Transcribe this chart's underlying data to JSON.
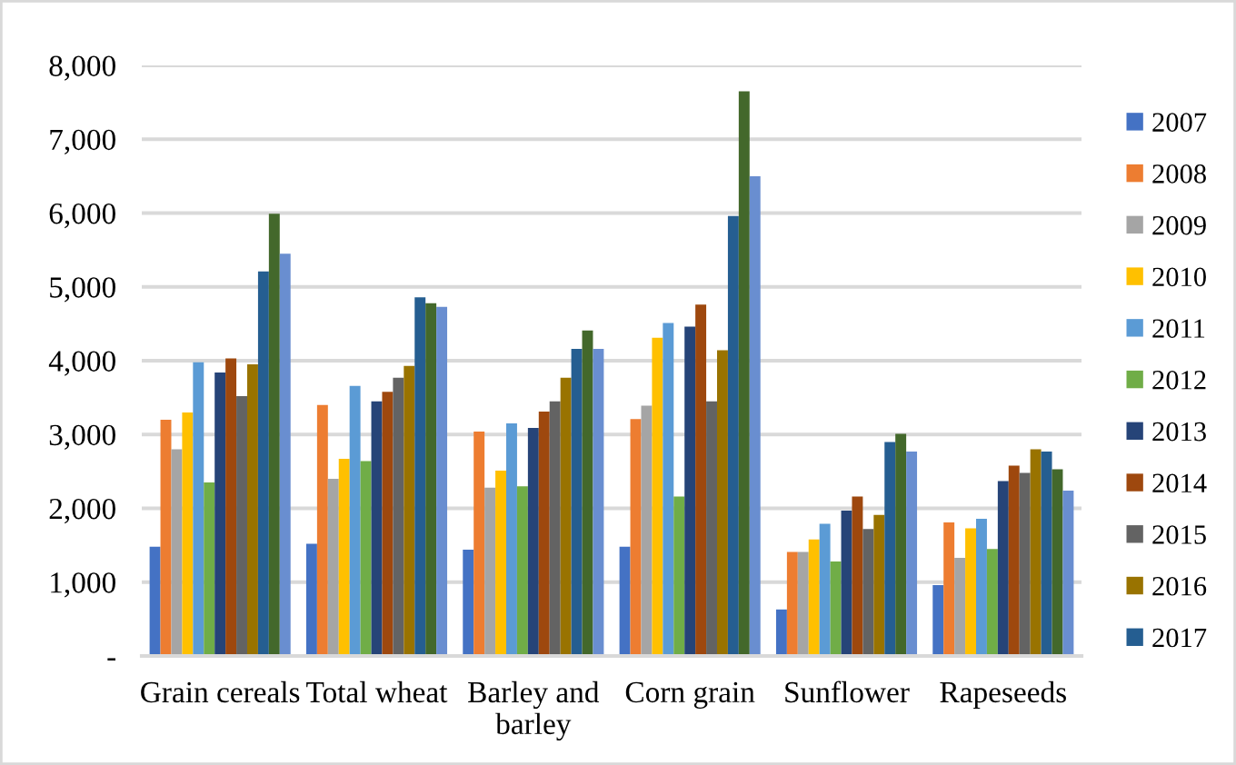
{
  "chart_data": {
    "type": "bar",
    "categories": [
      "Grain cereals",
      "Total wheat",
      "Barley and\nbarley",
      "Corn grain",
      "Sunflower",
      "Rapeseeds"
    ],
    "ylim": [
      0,
      8000
    ],
    "yticks": [
      {
        "value": 0,
        "label": "-"
      },
      {
        "value": 1000,
        "label": "1,000"
      },
      {
        "value": 2000,
        "label": "2,000"
      },
      {
        "value": 3000,
        "label": "3,000"
      },
      {
        "value": 4000,
        "label": "4,000"
      },
      {
        "value": 5000,
        "label": "5,000"
      },
      {
        "value": 6000,
        "label": "6,000"
      },
      {
        "value": 7000,
        "label": "7,000"
      },
      {
        "value": 8000,
        "label": "8,000"
      }
    ],
    "grid": "y",
    "legend": "right",
    "series": [
      {
        "name": "2007",
        "color": "#4472c4",
        "values": [
          1480,
          1520,
          1440,
          1480,
          630,
          960
        ]
      },
      {
        "name": "2008",
        "color": "#ed7d31",
        "values": [
          3200,
          3400,
          3040,
          3210,
          1410,
          1810
        ]
      },
      {
        "name": "2009",
        "color": "#a5a5a5",
        "values": [
          2800,
          2400,
          2280,
          3390,
          1410,
          1330
        ]
      },
      {
        "name": "2010",
        "color": "#ffc000",
        "values": [
          3300,
          2670,
          2510,
          4310,
          1580,
          1730
        ]
      },
      {
        "name": "2011",
        "color": "#5b9bd5",
        "values": [
          3980,
          3660,
          3150,
          4510,
          1790,
          1860
        ]
      },
      {
        "name": "2012",
        "color": "#70ad47",
        "values": [
          2350,
          2640,
          2300,
          2160,
          1280,
          1450
        ]
      },
      {
        "name": "2013",
        "color": "#264478",
        "values": [
          3840,
          3450,
          3090,
          4460,
          1970,
          2370
        ]
      },
      {
        "name": "2014",
        "color": "#9e480e",
        "values": [
          4030,
          3580,
          3310,
          4760,
          2160,
          2580
        ]
      },
      {
        "name": "2015",
        "color": "#636363",
        "values": [
          3520,
          3770,
          3450,
          3450,
          1720,
          2480
        ]
      },
      {
        "name": "2016",
        "color": "#997300",
        "values": [
          3950,
          3930,
          3770,
          4140,
          1910,
          2800
        ]
      },
      {
        "name": "2017",
        "color": "#255e91",
        "values": [
          5210,
          4860,
          4160,
          5960,
          2900,
          2770
        ]
      },
      {
        "color": "#43682b",
        "values": [
          5990,
          4780,
          4410,
          7650,
          3010,
          2530
        ]
      },
      {
        "color": "#698ed0",
        "values": [
          5450,
          4730,
          4160,
          6500,
          2770,
          2240
        ]
      }
    ]
  }
}
